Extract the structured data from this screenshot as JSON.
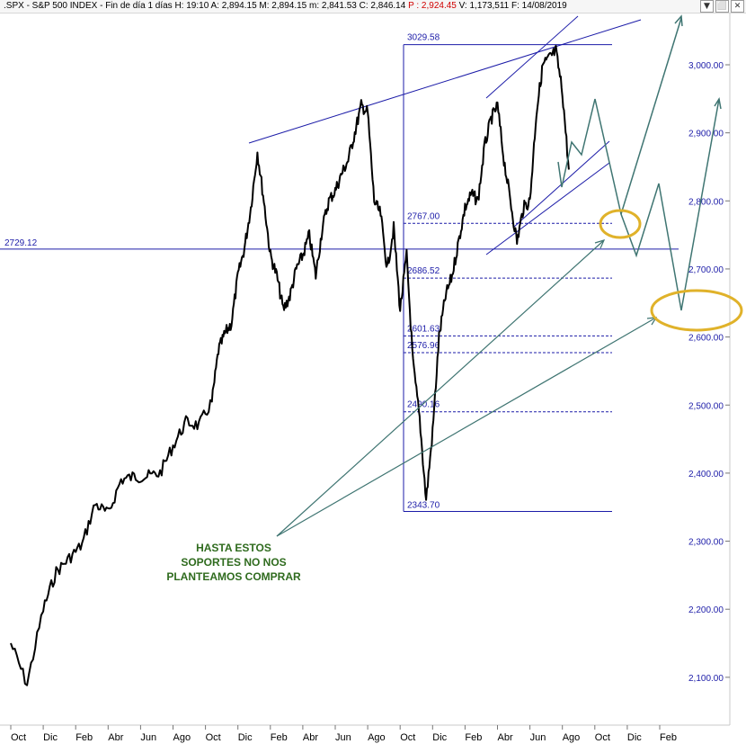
{
  "header": {
    "text_before": ".SPX - S&P 500 INDEX - Fin de día 1 días  H: 19:10  A: 2,894.15  M: 2,894.15  m: 2,841.53  C: 2,846.14  ",
    "text_highlight": "P : 2,924.45",
    "text_after": "  V: 1,173,511  F: 14/08/2019",
    "highlight_color": "#d00000",
    "controls": [
      "▼",
      "⬜",
      "✕"
    ],
    "control_icons": [
      "dropdown-icon",
      "maximize-icon",
      "close-icon"
    ]
  },
  "annotation": {
    "lines": [
      "HASTA ESTOS",
      "SOPORTES NO NOS",
      "PLANTEAMOS COMPRAR"
    ],
    "color": "#2f6b1e"
  },
  "colors": {
    "price": "#000000",
    "lines": "#1c1ca8",
    "projection": "#3f7572",
    "circle": "#e0b22a",
    "axis_labels": "#1c1ca8",
    "months": "#000000"
  },
  "chart_data": {
    "type": "line",
    "title": ".SPX - S&P 500 INDEX",
    "ylim": [
      2050,
      3100
    ],
    "y_ticks": [
      {
        "label": "3,000.00",
        "value": 3000
      },
      {
        "label": "2,900.00",
        "value": 2900
      },
      {
        "label": "2,800.00",
        "value": 2800
      },
      {
        "label": "2,700.00",
        "value": 2700
      },
      {
        "label": "2,600.00",
        "value": 2600
      },
      {
        "label": "2,500.00",
        "value": 2500
      },
      {
        "label": "2,400.00",
        "value": 2400
      },
      {
        "label": "2,300.00",
        "value": 2300
      },
      {
        "label": "2,200.00",
        "value": 2200
      },
      {
        "label": "2,100.00",
        "value": 2100
      }
    ],
    "x_ticks": [
      "Oct",
      "Dic",
      "Feb",
      "Abr",
      "Jun",
      "Ago",
      "Oct",
      "Dic",
      "Feb",
      "Abr",
      "Jun",
      "Ago",
      "Oct",
      "Dic",
      "Feb",
      "Abr",
      "Jun",
      "Ago",
      "Oct",
      "Dic",
      "Feb"
    ],
    "series": [
      {
        "kind": "price",
        "x": [
          0,
          0.5,
          1,
          1.4,
          1.8,
          2.2,
          2.6,
          3,
          3.4,
          3.8,
          4.2,
          4.6,
          5,
          5.4,
          5.8,
          6.2,
          6.4,
          6.6,
          6.8,
          7,
          7.2,
          7.4,
          7.6,
          7.8,
          8,
          8.2,
          8.4,
          8.6,
          8.8,
          9,
          9.2,
          9.4,
          9.6,
          9.8,
          10,
          10.2,
          10.4,
          10.6,
          10.8,
          11,
          11.2,
          11.4,
          11.6,
          11.8,
          12,
          12.2,
          12.4,
          12.6,
          12.8,
          13,
          13.2,
          13.4,
          13.6,
          13.8,
          14,
          14.2,
          14.4,
          14.6,
          14.8,
          15,
          15.2,
          15.4,
          15.6,
          15.8,
          16,
          16.2,
          16.4,
          16.6,
          16.8,
          17,
          17.2
        ],
        "y": [
          2150,
          2090,
          2200,
          2255,
          2275,
          2295,
          2355,
          2340,
          2390,
          2395,
          2395,
          2400,
          2440,
          2475,
          2470,
          2505,
          2580,
          2605,
          2620,
          2690,
          2730,
          2790,
          2872,
          2800,
          2720,
          2690,
          2640,
          2660,
          2700,
          2720,
          2750,
          2690,
          2760,
          2800,
          2815,
          2840,
          2860,
          2900,
          2940,
          2930,
          2800,
          2780,
          2700,
          2760,
          2640,
          2720,
          2560,
          2480,
          2360,
          2460,
          2600,
          2660,
          2690,
          2740,
          2790,
          2810,
          2800,
          2880,
          2920,
          2940,
          2860,
          2800,
          2740,
          2790,
          2800,
          2930,
          3000,
          3010,
          3020,
          2960,
          2846
        ]
      }
    ],
    "fibonacci": {
      "high": {
        "label": "3029.58",
        "value": 3029.58
      },
      "low": {
        "label": "2343.70",
        "value": 2343.7
      },
      "levels": [
        {
          "label": "2767.00",
          "value": 2767
        },
        {
          "label": "2686.52",
          "value": 2686.52
        },
        {
          "label": "2601.63",
          "value": 2601.63
        },
        {
          "label": "2576.96",
          "value": 2576.96
        },
        {
          "label": "2490.16",
          "value": 2490.16
        }
      ]
    },
    "horizontal_line": {
      "label": "2729.12",
      "value": 2729.12
    }
  }
}
